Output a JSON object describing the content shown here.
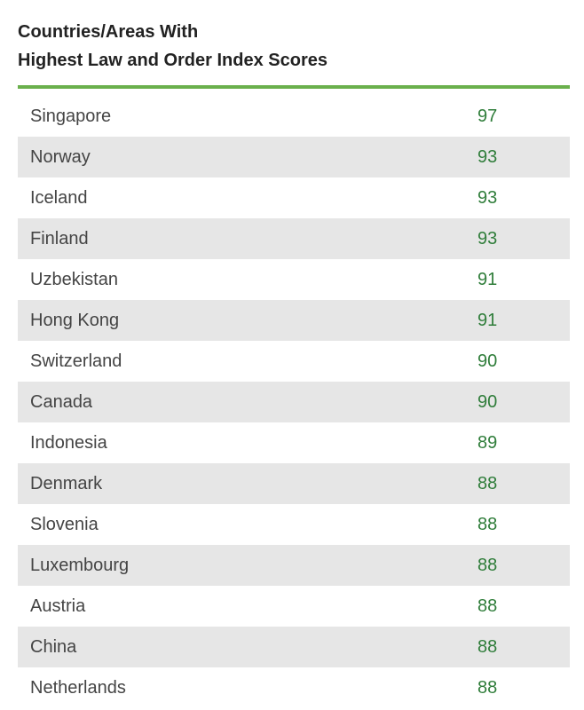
{
  "header": {
    "title_line1": "Countries/Areas With",
    "title_line2": "Highest Law and Order Index Scores"
  },
  "colors": {
    "accent_rule": "#6ab04c",
    "score_text": "#2f7d3a",
    "row_shade": "#e6e6e6"
  },
  "chart_data": {
    "type": "table",
    "title": "Countries/Areas With Highest Law and Order Index Scores",
    "rows": [
      {
        "country": "Singapore",
        "score": "97"
      },
      {
        "country": "Norway",
        "score": "93"
      },
      {
        "country": "Iceland",
        "score": "93"
      },
      {
        "country": "Finland",
        "score": "93"
      },
      {
        "country": "Uzbekistan",
        "score": "91"
      },
      {
        "country": "Hong Kong",
        "score": "91"
      },
      {
        "country": "Switzerland",
        "score": "90"
      },
      {
        "country": "Canada",
        "score": "90"
      },
      {
        "country": "Indonesia",
        "score": "89"
      },
      {
        "country": "Denmark",
        "score": "88"
      },
      {
        "country": "Slovenia",
        "score": "88"
      },
      {
        "country": "Luxembourg",
        "score": "88"
      },
      {
        "country": "Austria",
        "score": "88"
      },
      {
        "country": "China",
        "score": "88"
      },
      {
        "country": "Netherlands",
        "score": "88"
      }
    ]
  }
}
